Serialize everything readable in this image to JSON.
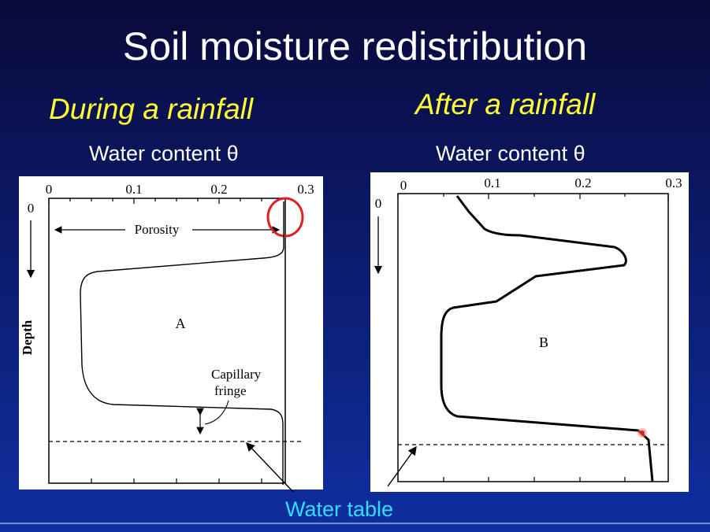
{
  "title": "Soil moisture redistribution",
  "subtitle_left": "During a rainfall",
  "subtitle_right": "After a rainfall",
  "xaxis_label_left": "Water content θ",
  "xaxis_label_right": "Water content θ",
  "panel_a": {
    "ticks": [
      "0",
      "0.1",
      "0.2",
      "0.3"
    ],
    "y_zero": "0",
    "y_label": "Depth",
    "porosity_label": "Porosity",
    "letter": "A",
    "capillary_label_1": "Capillary",
    "capillary_label_2": "fringe"
  },
  "panel_b": {
    "ticks": [
      "0",
      "0.1",
      "0.2",
      "0.3"
    ],
    "y_zero": "0",
    "letter": "B"
  },
  "water_table_label": "Water table",
  "colors": {
    "title": "#ffffff",
    "subtitle": "#ffff33",
    "water_table": "#33ddff",
    "highlight_circle": "#e02020"
  }
}
